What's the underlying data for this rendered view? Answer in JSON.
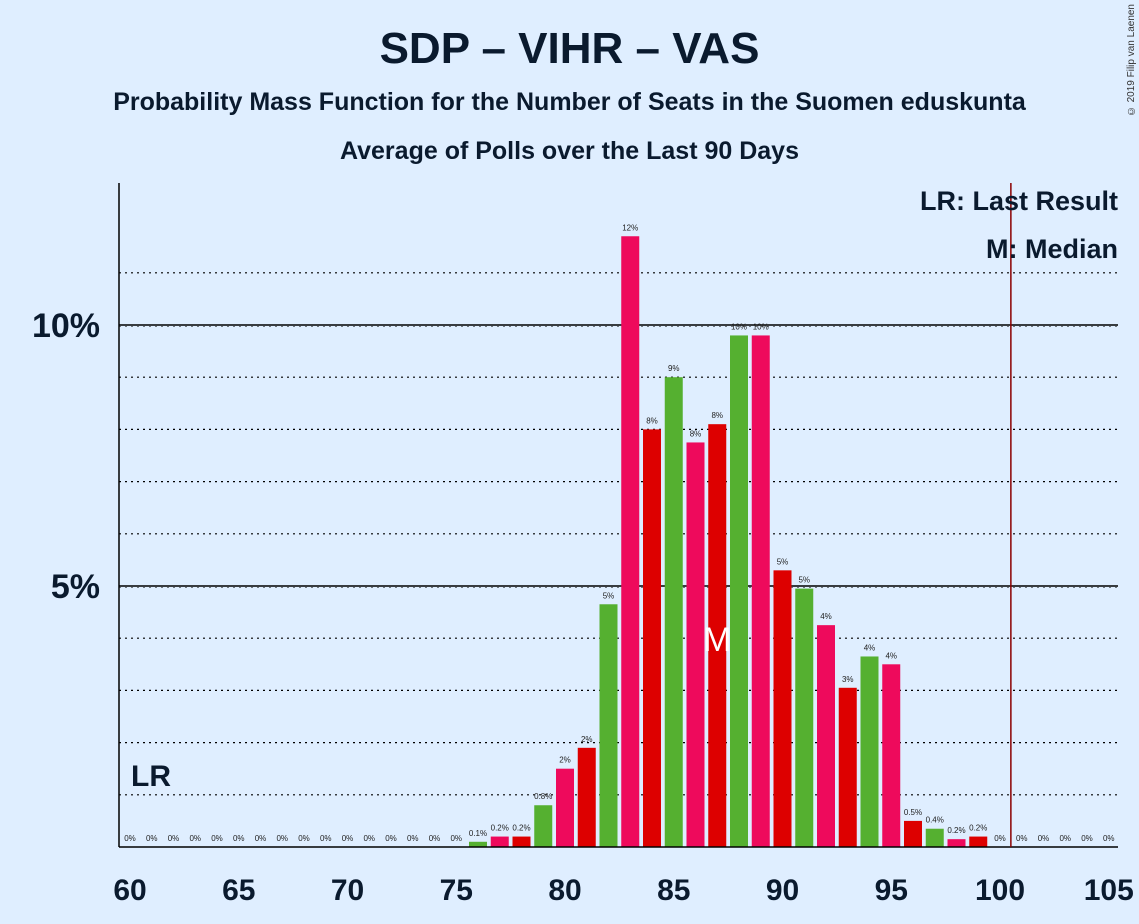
{
  "header": {
    "title": "SDP – VIHR – VAS",
    "subtitle": "Probability Mass Function for the Number of Seats in the Suomen eduskunta",
    "subtitle2": "Average of Polls over the Last 90 Days",
    "copyright": "© 2019 Filip van Laenen"
  },
  "legend": {
    "lr_text": "LR: Last Result",
    "m_text": "M: Median"
  },
  "markers": {
    "lr_label": "LR",
    "median_label": "M",
    "median_seat": 87,
    "last_result_line_seat": 100.5,
    "last_result_color": "#8b0000"
  },
  "colors": {
    "background": "#dfeeff",
    "red": "#dd0000",
    "pink": "#ee0a5c",
    "green": "#55b030"
  },
  "chart_data": {
    "type": "bar",
    "xlim": [
      60,
      105
    ],
    "ylim": [
      0,
      12.7
    ],
    "x_ticks": [
      "60",
      "65",
      "70",
      "75",
      "80",
      "85",
      "90",
      "95",
      "100",
      "105"
    ],
    "y_ticks": [
      {
        "value": 5,
        "label": "5%"
      },
      {
        "value": 10,
        "label": "10%"
      }
    ],
    "grid": "dotted at every 1%, solid at 5%",
    "bars": [
      {
        "x": 60,
        "value": 0,
        "label": "0%",
        "color": "red"
      },
      {
        "x": 61,
        "value": 0,
        "label": "0%",
        "color": "green"
      },
      {
        "x": 62,
        "value": 0,
        "label": "0%",
        "color": "pink"
      },
      {
        "x": 63,
        "value": 0,
        "label": "0%",
        "color": "red"
      },
      {
        "x": 64,
        "value": 0,
        "label": "0%",
        "color": "green"
      },
      {
        "x": 65,
        "value": 0,
        "label": "0%",
        "color": "pink"
      },
      {
        "x": 66,
        "value": 0,
        "label": "0%",
        "color": "red"
      },
      {
        "x": 67,
        "value": 0,
        "label": "0%",
        "color": "green"
      },
      {
        "x": 68,
        "value": 0,
        "label": "0%",
        "color": "pink"
      },
      {
        "x": 69,
        "value": 0,
        "label": "0%",
        "color": "red"
      },
      {
        "x": 70,
        "value": 0,
        "label": "0%",
        "color": "green"
      },
      {
        "x": 71,
        "value": 0,
        "label": "0%",
        "color": "pink"
      },
      {
        "x": 72,
        "value": 0,
        "label": "0%",
        "color": "red"
      },
      {
        "x": 73,
        "value": 0,
        "label": "0%",
        "color": "green"
      },
      {
        "x": 74,
        "value": 0,
        "label": "0%",
        "color": "pink"
      },
      {
        "x": 75,
        "value": 0,
        "label": "0%",
        "color": "red"
      },
      {
        "x": 76,
        "value": 0.1,
        "label": "0.1%",
        "color": "green"
      },
      {
        "x": 77,
        "value": 0.2,
        "label": "0.2%",
        "color": "pink"
      },
      {
        "x": 78,
        "value": 0.2,
        "label": "0.2%",
        "color": "red"
      },
      {
        "x": 79,
        "value": 0.8,
        "label": "0.8%",
        "color": "green"
      },
      {
        "x": 80,
        "value": 1.5,
        "label": "2%",
        "color": "pink"
      },
      {
        "x": 81,
        "value": 1.9,
        "label": "2%",
        "color": "red"
      },
      {
        "x": 82,
        "value": 4.65,
        "label": "5%",
        "color": "green"
      },
      {
        "x": 83,
        "value": 11.7,
        "label": "12%",
        "color": "pink"
      },
      {
        "x": 84,
        "value": 8.0,
        "label": "8%",
        "color": "red"
      },
      {
        "x": 85,
        "value": 9.0,
        "label": "9%",
        "color": "green"
      },
      {
        "x": 86,
        "value": 7.75,
        "label": "8%",
        "color": "pink"
      },
      {
        "x": 87,
        "value": 8.1,
        "label": "8%",
        "color": "red"
      },
      {
        "x": 88,
        "value": 9.8,
        "label": "10%",
        "color": "green"
      },
      {
        "x": 89,
        "value": 9.8,
        "label": "10%",
        "color": "pink"
      },
      {
        "x": 90,
        "value": 5.3,
        "label": "5%",
        "color": "red"
      },
      {
        "x": 91,
        "value": 4.95,
        "label": "5%",
        "color": "green"
      },
      {
        "x": 92,
        "value": 4.25,
        "label": "4%",
        "color": "pink"
      },
      {
        "x": 93,
        "value": 3.05,
        "label": "3%",
        "color": "red"
      },
      {
        "x": 94,
        "value": 3.65,
        "label": "4%",
        "color": "green"
      },
      {
        "x": 95,
        "value": 3.5,
        "label": "4%",
        "color": "pink"
      },
      {
        "x": 96,
        "value": 0.5,
        "label": "0.5%",
        "color": "red"
      },
      {
        "x": 97,
        "value": 0.35,
        "label": "0.4%",
        "color": "green"
      },
      {
        "x": 98,
        "value": 0.15,
        "label": "0.2%",
        "color": "pink"
      },
      {
        "x": 99,
        "value": 0.2,
        "label": "0.2%",
        "color": "red"
      },
      {
        "x": 100,
        "value": 0,
        "label": "0%",
        "color": "green"
      },
      {
        "x": 101,
        "value": 0,
        "label": "0%",
        "color": "pink"
      },
      {
        "x": 102,
        "value": 0,
        "label": "0%",
        "color": "red"
      },
      {
        "x": 103,
        "value": 0,
        "label": "0%",
        "color": "green"
      },
      {
        "x": 104,
        "value": 0,
        "label": "0%",
        "color": "pink"
      },
      {
        "x": 105,
        "value": 0,
        "label": "0%",
        "color": "red"
      }
    ]
  }
}
